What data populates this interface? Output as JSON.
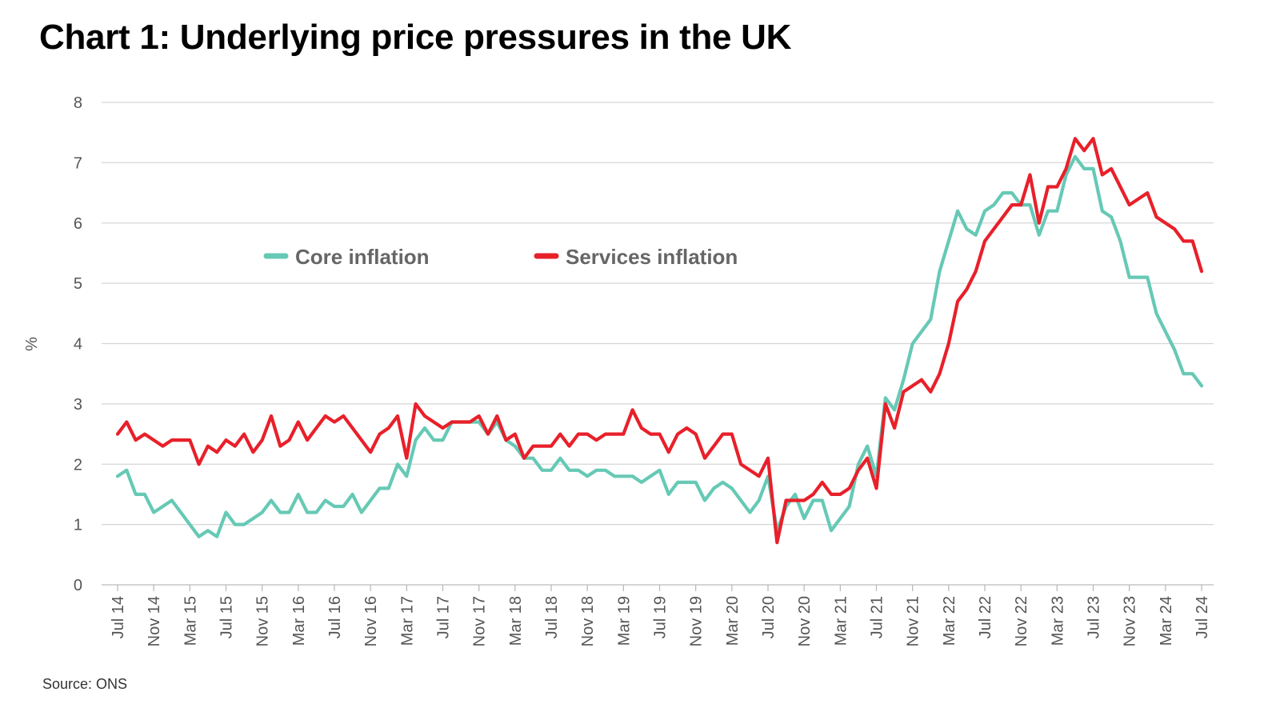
{
  "chart_data": {
    "type": "line",
    "title": "Chart 1: Underlying price pressures in the UK",
    "source": "Source: ONS",
    "ylabel": "%",
    "xlabel": "",
    "ylim": [
      0,
      8
    ],
    "yticks": [
      0,
      1,
      2,
      3,
      4,
      5,
      6,
      7,
      8
    ],
    "grid": true,
    "legend_placement": "top-left",
    "xtick_labels": [
      "Jul 14",
      "Nov 14",
      "Mar 15",
      "Jul 15",
      "Nov 15",
      "Mar 16",
      "Jul 16",
      "Nov 16",
      "Mar 17",
      "Jul 17",
      "Nov 17",
      "Mar 18",
      "Jul 18",
      "Nov 18",
      "Mar 19",
      "Jul 19",
      "Nov 19",
      "Mar 20",
      "Jul 20",
      "Nov 20",
      "Mar 21",
      "Jul 21",
      "Nov 21",
      "Mar 22",
      "Jul 22",
      "Nov 22",
      "Mar 23",
      "Jul 23",
      "Nov 23",
      "Mar 24",
      "Jul 24"
    ],
    "categories": [
      "Jul 14",
      "Aug 14",
      "Sep 14",
      "Oct 14",
      "Nov 14",
      "Dec 14",
      "Jan 15",
      "Feb 15",
      "Mar 15",
      "Apr 15",
      "May 15",
      "Jun 15",
      "Jul 15",
      "Aug 15",
      "Sep 15",
      "Oct 15",
      "Nov 15",
      "Dec 15",
      "Jan 16",
      "Feb 16",
      "Mar 16",
      "Apr 16",
      "May 16",
      "Jun 16",
      "Jul 16",
      "Aug 16",
      "Sep 16",
      "Oct 16",
      "Nov 16",
      "Dec 16",
      "Jan 17",
      "Feb 17",
      "Mar 17",
      "Apr 17",
      "May 17",
      "Jun 17",
      "Jul 17",
      "Aug 17",
      "Sep 17",
      "Oct 17",
      "Nov 17",
      "Dec 17",
      "Jan 18",
      "Feb 18",
      "Mar 18",
      "Apr 18",
      "May 18",
      "Jun 18",
      "Jul 18",
      "Aug 18",
      "Sep 18",
      "Oct 18",
      "Nov 18",
      "Dec 18",
      "Jan 19",
      "Feb 19",
      "Mar 19",
      "Apr 19",
      "May 19",
      "Jun 19",
      "Jul 19",
      "Aug 19",
      "Sep 19",
      "Oct 19",
      "Nov 19",
      "Dec 19",
      "Jan 20",
      "Feb 20",
      "Mar 20",
      "Apr 20",
      "May 20",
      "Jun 20",
      "Jul 20",
      "Aug 20",
      "Sep 20",
      "Oct 20",
      "Nov 20",
      "Dec 20",
      "Jan 21",
      "Feb 21",
      "Mar 21",
      "Apr 21",
      "May 21",
      "Jun 21",
      "Jul 21",
      "Aug 21",
      "Sep 21",
      "Oct 21",
      "Nov 21",
      "Dec 21",
      "Jan 22",
      "Feb 22",
      "Mar 22",
      "Apr 22",
      "May 22",
      "Jun 22",
      "Jul 22",
      "Aug 22",
      "Sep 22",
      "Oct 22",
      "Nov 22",
      "Dec 22",
      "Jan 23",
      "Feb 23",
      "Mar 23",
      "Apr 23",
      "May 23",
      "Jun 23",
      "Jul 23",
      "Aug 23",
      "Sep 23",
      "Oct 23",
      "Nov 23",
      "Dec 23",
      "Jan 24",
      "Feb 24",
      "Mar 24",
      "Apr 24",
      "May 24",
      "Jun 24",
      "Jul 24"
    ],
    "series": [
      {
        "name": "Core inflation",
        "color": "#66c9b5",
        "values": [
          1.8,
          1.9,
          1.5,
          1.5,
          1.2,
          1.3,
          1.4,
          1.2,
          1.0,
          0.8,
          0.9,
          0.8,
          1.2,
          1.0,
          1.0,
          1.1,
          1.2,
          1.4,
          1.2,
          1.2,
          1.5,
          1.2,
          1.2,
          1.4,
          1.3,
          1.3,
          1.5,
          1.2,
          1.4,
          1.6,
          1.6,
          2.0,
          1.8,
          2.4,
          2.6,
          2.4,
          2.4,
          2.7,
          2.7,
          2.7,
          2.7,
          2.5,
          2.7,
          2.4,
          2.3,
          2.1,
          2.1,
          1.9,
          1.9,
          2.1,
          1.9,
          1.9,
          1.8,
          1.9,
          1.9,
          1.8,
          1.8,
          1.8,
          1.7,
          1.8,
          1.9,
          1.5,
          1.7,
          1.7,
          1.7,
          1.4,
          1.6,
          1.7,
          1.6,
          1.4,
          1.2,
          1.4,
          1.8,
          0.9,
          1.3,
          1.5,
          1.1,
          1.4,
          1.4,
          0.9,
          1.1,
          1.3,
          2.0,
          2.3,
          1.8,
          3.1,
          2.9,
          3.4,
          4.0,
          4.2,
          4.4,
          5.2,
          5.7,
          6.2,
          5.9,
          5.8,
          6.2,
          6.3,
          6.5,
          6.5,
          6.3,
          6.3,
          5.8,
          6.2,
          6.2,
          6.8,
          7.1,
          6.9,
          6.9,
          6.2,
          6.1,
          5.7,
          5.1,
          5.1,
          5.1,
          4.5,
          4.2,
          3.9,
          3.5,
          3.5,
          3.3
        ]
      },
      {
        "name": "Services inflation",
        "color": "#e8202a",
        "values": [
          2.5,
          2.7,
          2.4,
          2.5,
          2.4,
          2.3,
          2.4,
          2.4,
          2.4,
          2.0,
          2.3,
          2.2,
          2.4,
          2.3,
          2.5,
          2.2,
          2.4,
          2.8,
          2.3,
          2.4,
          2.7,
          2.4,
          2.6,
          2.8,
          2.7,
          2.8,
          2.6,
          2.4,
          2.2,
          2.5,
          2.6,
          2.8,
          2.1,
          3.0,
          2.8,
          2.7,
          2.6,
          2.7,
          2.7,
          2.7,
          2.8,
          2.5,
          2.8,
          2.4,
          2.5,
          2.1,
          2.3,
          2.3,
          2.3,
          2.5,
          2.3,
          2.5,
          2.5,
          2.4,
          2.5,
          2.5,
          2.5,
          2.9,
          2.6,
          2.5,
          2.5,
          2.2,
          2.5,
          2.6,
          2.5,
          2.1,
          2.3,
          2.5,
          2.5,
          2.0,
          1.9,
          1.8,
          2.1,
          0.7,
          1.4,
          1.4,
          1.4,
          1.5,
          1.7,
          1.5,
          1.5,
          1.6,
          1.9,
          2.1,
          1.6,
          3.0,
          2.6,
          3.2,
          3.3,
          3.4,
          3.2,
          3.5,
          4.0,
          4.7,
          4.9,
          5.2,
          5.7,
          5.9,
          6.1,
          6.3,
          6.3,
          6.8,
          6.0,
          6.6,
          6.6,
          6.9,
          7.4,
          7.2,
          7.4,
          6.8,
          6.9,
          6.6,
          6.3,
          6.4,
          6.5,
          6.1,
          6.0,
          5.9,
          5.7,
          5.7,
          5.2
        ]
      }
    ]
  }
}
